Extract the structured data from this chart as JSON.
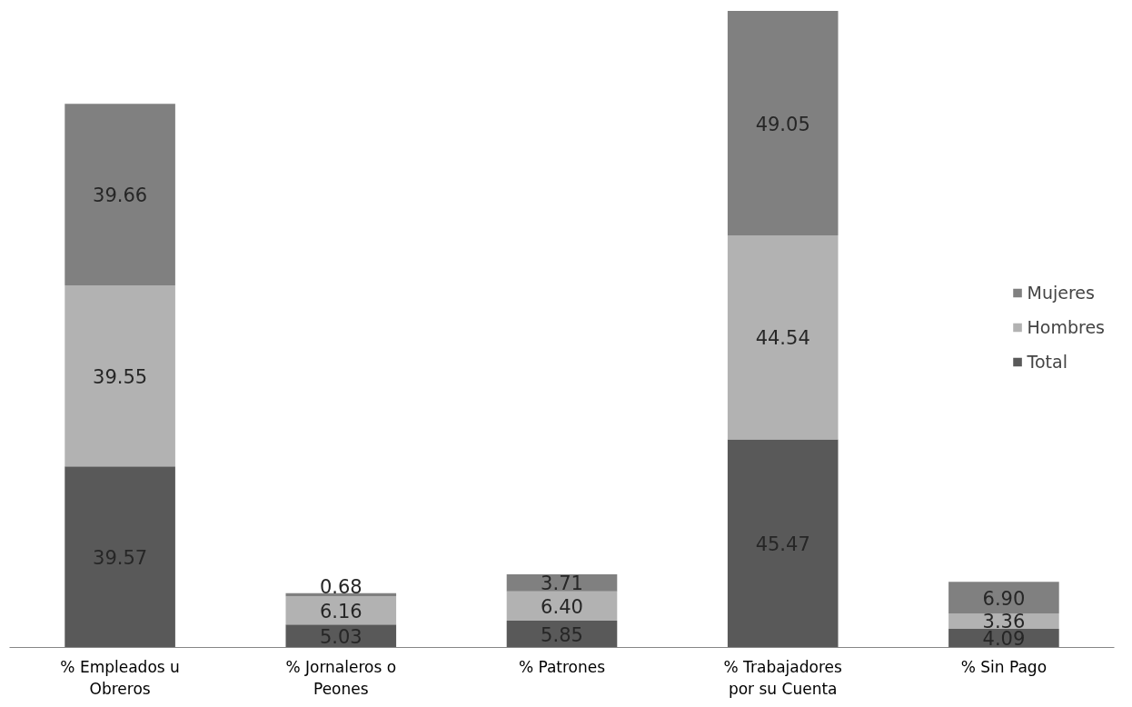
{
  "chart_data": {
    "type": "bar",
    "stacked": true,
    "categories": [
      "% Empleados u Obreros",
      "% Jornaleros o Peones",
      "% Patrones",
      "% Trabajadores por su Cuenta",
      "% Sin Pago"
    ],
    "series": [
      {
        "name": "Total",
        "color": "#595959",
        "values": [
          39.57,
          5.03,
          5.85,
          45.47,
          4.09
        ],
        "value_labels": [
          "39.57",
          "5.03",
          "5.85",
          "45.47",
          "4.09"
        ]
      },
      {
        "name": "Hombres",
        "color": "#b2b2b2",
        "values": [
          39.55,
          6.16,
          6.4,
          44.54,
          3.36
        ],
        "value_labels": [
          "39.55",
          "6.16",
          "6.40",
          "44.54",
          "3.36"
        ]
      },
      {
        "name": "Mujeres",
        "color": "#808080",
        "values": [
          39.66,
          0.68,
          3.71,
          49.05,
          6.9
        ],
        "value_labels": [
          "39.66",
          "0.68",
          "3.71",
          "49.05",
          "6.90"
        ]
      }
    ],
    "legend": "right",
    "grid": false
  }
}
